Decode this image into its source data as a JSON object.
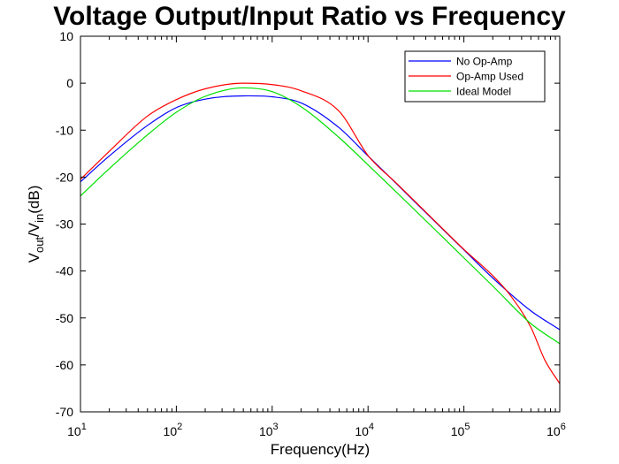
{
  "chart_data": {
    "type": "line",
    "title": "Voltage Output/Input Ratio vs Frequency",
    "xlabel": "Frequency(Hz)",
    "ylabel": {
      "base1": "V",
      "sub1": "out",
      "mid": "/V",
      "sub2": "in",
      "tail": "(dB)"
    },
    "xscale": "log",
    "xlim": [
      10,
      1000000
    ],
    "ylim": [
      -70,
      10
    ],
    "x_ticks": [
      {
        "base": "10",
        "exp": "1",
        "value": 10
      },
      {
        "base": "10",
        "exp": "2",
        "value": 100
      },
      {
        "base": "10",
        "exp": "3",
        "value": 1000
      },
      {
        "base": "10",
        "exp": "4",
        "value": 10000
      },
      {
        "base": "10",
        "exp": "5",
        "value": 100000
      },
      {
        "base": "10",
        "exp": "6",
        "value": 1000000
      }
    ],
    "y_ticks": [
      "10",
      "0",
      "-10",
      "-20",
      "-30",
      "-40",
      "-50",
      "-60",
      "-70"
    ],
    "grid": false,
    "legend_position": "top-right",
    "series": [
      {
        "name": "No Op-Amp",
        "color": "#0000ff",
        "x": [
          10,
          20,
          50,
          100,
          200,
          500,
          1000,
          2000,
          5000,
          10000,
          20000,
          50000,
          100000,
          200000,
          500000,
          1000000
        ],
        "y": [
          -21,
          -15.5,
          -9,
          -5.2,
          -3.4,
          -2.7,
          -2.9,
          -4.2,
          -9.5,
          -15.5,
          -21.5,
          -29.5,
          -35.5,
          -41.5,
          -48.5,
          -52.5
        ]
      },
      {
        "name": "Op-Amp Used",
        "color": "#ff0000",
        "x": [
          10,
          20,
          50,
          100,
          200,
          500,
          1000,
          2000,
          5000,
          10000,
          20000,
          50000,
          100000,
          200000,
          300000,
          500000,
          700000,
          1000000
        ],
        "y": [
          -20.5,
          -14.5,
          -7,
          -3.5,
          -1.2,
          0,
          -0.3,
          -1.6,
          -6,
          -15.4,
          -21.4,
          -29.4,
          -35.4,
          -41,
          -45,
          -52,
          -59,
          -64
        ]
      },
      {
        "name": "Ideal Model",
        "color": "#00e000",
        "x": [
          10,
          20,
          50,
          100,
          200,
          500,
          1000,
          2000,
          5000,
          10000,
          20000,
          50000,
          100000,
          200000,
          500000,
          1000000
        ],
        "y": [
          -24,
          -18.2,
          -11,
          -6.2,
          -2.8,
          -1,
          -1.8,
          -5,
          -11.6,
          -17.4,
          -23.3,
          -31.2,
          -37.2,
          -43.2,
          -51.2,
          -55.5
        ]
      }
    ]
  }
}
